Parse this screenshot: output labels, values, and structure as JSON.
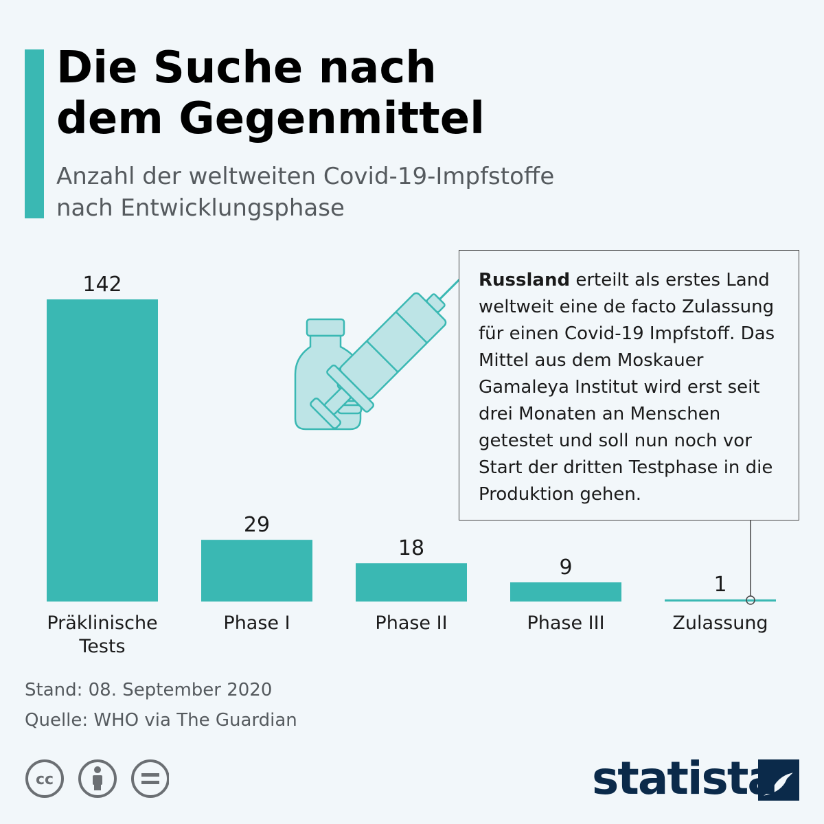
{
  "header": {
    "title_line1": "Die Suche nach",
    "title_line2": "dem Gegenmittel",
    "subtitle_line1": "Anzahl der weltweiten Covid-19-Impfstoffe",
    "subtitle_line2": "nach Entwicklungsphase"
  },
  "chart_data": {
    "type": "bar",
    "title": "Die Suche nach dem Gegenmittel",
    "subtitle": "Anzahl der weltweiten Covid-19-Impfstoffe nach Entwicklungsphase",
    "categories": [
      [
        "Präklinische",
        "Tests"
      ],
      [
        "Phase I"
      ],
      [
        "Phase II"
      ],
      [
        "Phase III"
      ],
      [
        "Zulassung"
      ]
    ],
    "values": [
      142,
      29,
      18,
      9,
      1
    ],
    "xlabel": "",
    "ylabel": "",
    "ylim": [
      0,
      142
    ],
    "grid": false,
    "colors": {
      "bar": "#3ab8b3"
    }
  },
  "note": {
    "bold": "Russland",
    "text": " erteilt als erstes Land weltweit eine de facto Zulassung für einen Covid-19 Impfstoff. Das Mittel aus dem Moskauer Gamaleya Institut wird erst seit drei Monaten an Menschen getestet und soll nun noch vor Start der dritten Testphase in die Produktion gehen."
  },
  "footer": {
    "stand": "Stand: 08. September 2020",
    "quelle": "Quelle: WHO via The Guardian"
  },
  "icons": [
    "vaccine-vial-icon",
    "syringe-icon",
    "cc-icon",
    "attribution-icon",
    "no-derivatives-icon",
    "statista-logo-icon"
  ],
  "brand": {
    "logo_text": "statista",
    "accent": "#3ab8b3",
    "logo_color": "#0b2a4a"
  }
}
